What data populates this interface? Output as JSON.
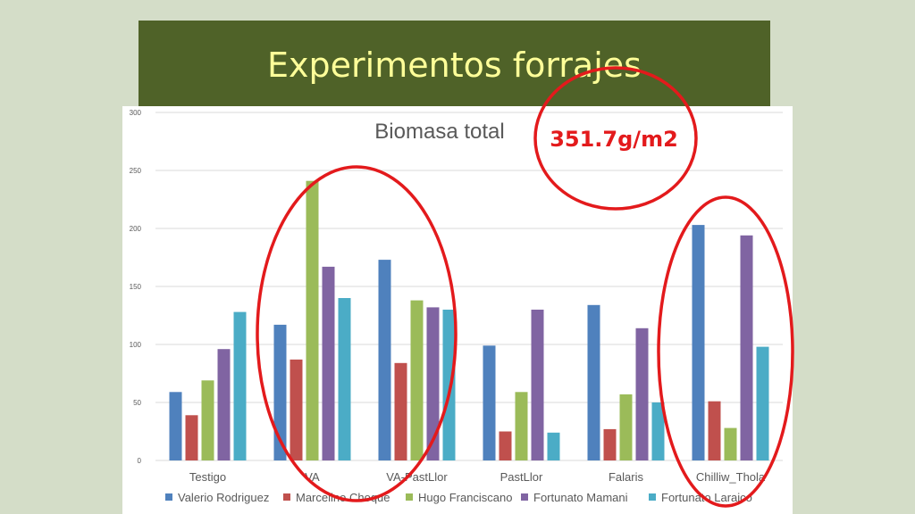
{
  "slide": {
    "title": "Experimentos forrajes",
    "callout": "351.7g/m2"
  },
  "colors": {
    "background": "#d4ddc8",
    "title_band": "#4f6228",
    "title_text": "#ffff99",
    "annotation": "#e31a1c"
  },
  "chart_data": {
    "type": "bar",
    "title": "Biomasa total",
    "xlabel": "",
    "ylabel": "",
    "ylim": [
      0,
      300
    ],
    "yticks": [
      0,
      50,
      100,
      150,
      200,
      250,
      300
    ],
    "grid": true,
    "legend_position": "bottom",
    "categories": [
      "Testigo",
      "VA",
      "VA-PastLlor",
      "PastLlor",
      "Falaris",
      "Chilliw_Thola"
    ],
    "series": [
      {
        "name": "Valerio Rodriguez",
        "color": "#4f81bd",
        "values": [
          59,
          117,
          173,
          99,
          134,
          203
        ]
      },
      {
        "name": "Marcelino Choque",
        "color": "#c0504d",
        "values": [
          39,
          87,
          84,
          25,
          27,
          51
        ]
      },
      {
        "name": "Hugo Franciscano",
        "color": "#9bbb59",
        "values": [
          69,
          241,
          138,
          59,
          57,
          28
        ]
      },
      {
        "name": "Fortunato Mamani",
        "color": "#8064a2",
        "values": [
          96,
          167,
          132,
          130,
          114,
          194
        ]
      },
      {
        "name": "Fortunato Laraico",
        "color": "#4bacc6",
        "values": [
          128,
          140,
          130,
          24,
          50,
          98
        ]
      }
    ]
  }
}
